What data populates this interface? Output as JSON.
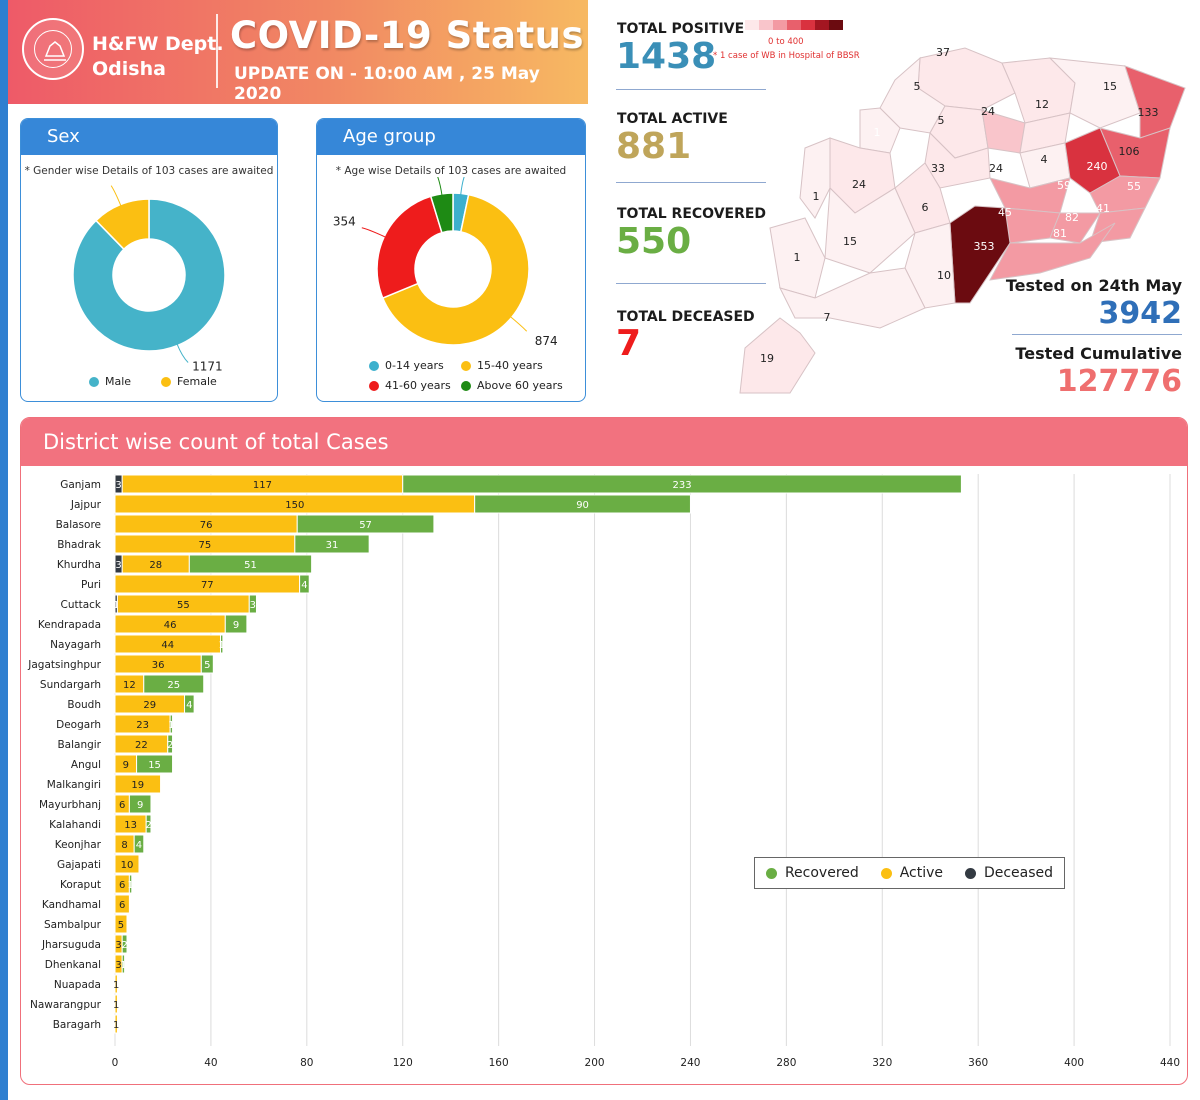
{
  "header": {
    "dept_line1": "H&FW Dept.",
    "dept_line2": "Odisha",
    "title": "COVID-19 Status",
    "update": "UPDATE ON - 10:00 AM , 25 May 2020"
  },
  "sex_card": {
    "title": "Sex",
    "note": "* Gender wise Details of 103 cases are awaited",
    "slices": [
      {
        "label": "Male",
        "value": 1171,
        "color": "#45b3c9"
      },
      {
        "label": "Female",
        "value": 164,
        "color": "#fbbf12"
      }
    ]
  },
  "age_card": {
    "title": "Age group",
    "note": "* Age wise Details of 103 cases are awaited",
    "slices": [
      {
        "label": "0-14 years",
        "value": 44,
        "color": "#3cb0cd"
      },
      {
        "label": "15-40 years",
        "value": 874,
        "color": "#fbbf12"
      },
      {
        "label": "41-60 years",
        "value": 354,
        "color": "#ee1c1c"
      },
      {
        "label": "Above 60 years",
        "value": 63,
        "color": "#1e8a14"
      }
    ]
  },
  "stats": {
    "positive": {
      "label": "TOTAL POSITIVE",
      "value": "1438",
      "color": "#3a8fb7"
    },
    "active": {
      "label": "TOTAL ACTIVE",
      "value": "881",
      "color": "#bfa55a"
    },
    "recovered": {
      "label": "TOTAL RECOVERED",
      "value": "550",
      "color": "#6aae44"
    },
    "deceased": {
      "label": "TOTAL DECEASED",
      "value": "7",
      "color": "#ee1c1c"
    }
  },
  "scale": {
    "range": "0 to 400",
    "note": "* 1 case of WB in Hospital of BBSR",
    "colors": [
      "#fde8ea",
      "#f9c5cb",
      "#f39aa3",
      "#e8606c",
      "#d9323f",
      "#a31621",
      "#6b0b10"
    ]
  },
  "tests": {
    "today_label": "Tested on 24th May",
    "today_value": "3942",
    "today_color": "#2f6fb8",
    "cum_label": "Tested Cumulative",
    "cum_value": "127776",
    "cum_color": "#ef6f6f"
  },
  "map": {
    "district_counts": [
      "37",
      "5",
      "15",
      "5",
      "24",
      "12",
      "133",
      "1",
      "24",
      "106",
      "4",
      "240",
      "33",
      "59",
      "55",
      "24",
      "1",
      "6",
      "45",
      "82",
      "41",
      "15",
      "353",
      "81",
      "1",
      "10",
      "7",
      "19"
    ]
  },
  "chart_data": {
    "type": "bar",
    "orientation": "horizontal",
    "stacked": true,
    "title": "District wise count of total Cases",
    "categories": [
      "Ganjam",
      "Jajpur",
      "Balasore",
      "Bhadrak",
      "Khurdha",
      "Puri",
      "Cuttack",
      "Kendrapada",
      "Nayagarh",
      "Jagatsinghpur",
      "Sundargarh",
      "Boudh",
      "Deogarh",
      "Balangir",
      "Angul",
      "Malkangiri",
      "Mayurbhanj",
      "Kalahandi",
      "Keonjhar",
      "Gajapati",
      "Koraput",
      "Kandhamal",
      "Sambalpur",
      "Jharsuguda",
      "Dhenkanal",
      "Nuapada",
      "Nawarangpur",
      "Baragarh"
    ],
    "series": [
      {
        "name": "Deceased",
        "color": "#333a42",
        "values": [
          3,
          0,
          0,
          0,
          3,
          0,
          1,
          0,
          0,
          0,
          0,
          0,
          0,
          0,
          0,
          0,
          0,
          0,
          0,
          0,
          0,
          0,
          0,
          0,
          0,
          0,
          0,
          0
        ]
      },
      {
        "name": "Active",
        "color": "#fbbf12",
        "values": [
          117,
          150,
          76,
          75,
          28,
          77,
          55,
          46,
          44,
          36,
          12,
          29,
          23,
          22,
          9,
          19,
          6,
          13,
          8,
          10,
          6,
          6,
          5,
          3,
          3,
          1,
          1,
          1
        ]
      },
      {
        "name": "Recovered",
        "color": "#6aae44",
        "values": [
          233,
          90,
          57,
          31,
          51,
          4,
          3,
          9,
          1,
          5,
          25,
          4,
          1,
          2,
          15,
          0,
          9,
          2,
          4,
          0,
          1,
          0,
          0,
          2,
          1,
          0,
          0,
          0
        ]
      }
    ],
    "legend_order": [
      "Recovered",
      "Active",
      "Deceased"
    ],
    "legend_position": "middle-right",
    "xlim": [
      0,
      440
    ],
    "xticks": [
      0,
      40,
      80,
      120,
      160,
      200,
      240,
      280,
      320,
      360,
      400,
      440
    ],
    "grid": "vertical"
  }
}
